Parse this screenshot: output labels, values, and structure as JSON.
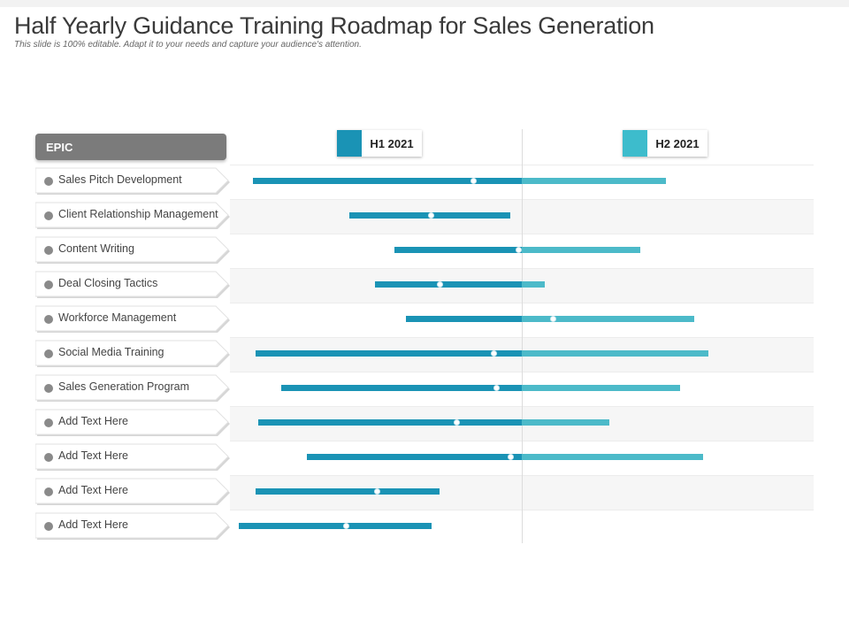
{
  "title": "Half Yearly Guidance Training Roadmap for Sales Generation",
  "subtitle": "This slide is 100% editable. Adapt it to your needs and capture your audience's attention.",
  "epic_header": "EPIC",
  "periods": [
    {
      "label": "H1 2021",
      "color": "#1a93b5"
    },
    {
      "label": "H2 2021",
      "color": "#3dbccc"
    }
  ],
  "colors": {
    "h1": "#1a93b5",
    "h2": "#4cbac9",
    "epic_header": "#7b7b7b"
  },
  "items": [
    {
      "label": "Sales Pitch Development",
      "start": 0.05,
      "end": 1.51,
      "marker": 0.83
    },
    {
      "label": "Client Relationship Management",
      "start": 0.39,
      "end": 0.96,
      "marker": 0.68
    },
    {
      "label": "Content Writing",
      "start": 0.55,
      "end": 1.42,
      "marker": 0.99
    },
    {
      "label": "Deal Closing Tactics",
      "start": 0.48,
      "end": 1.08,
      "marker": 0.71
    },
    {
      "label": "Workforce Management",
      "start": 0.59,
      "end": 1.61,
      "marker": 1.11
    },
    {
      "label": "Social Media Training",
      "start": 0.06,
      "end": 1.66,
      "marker": 0.9
    },
    {
      "label": "Sales Generation Program",
      "start": 0.15,
      "end": 1.56,
      "marker": 0.91
    },
    {
      "label": "Add Text Here",
      "start": 0.07,
      "end": 1.31,
      "marker": 0.77
    },
    {
      "label": "Add Text Here",
      "start": 0.24,
      "end": 1.64,
      "marker": 0.96
    },
    {
      "label": "Add Text Here",
      "start": 0.06,
      "end": 0.71,
      "marker": 0.49
    },
    {
      "label": "Add Text Here",
      "start": 0.0,
      "end": 0.68,
      "marker": 0.38
    }
  ]
}
